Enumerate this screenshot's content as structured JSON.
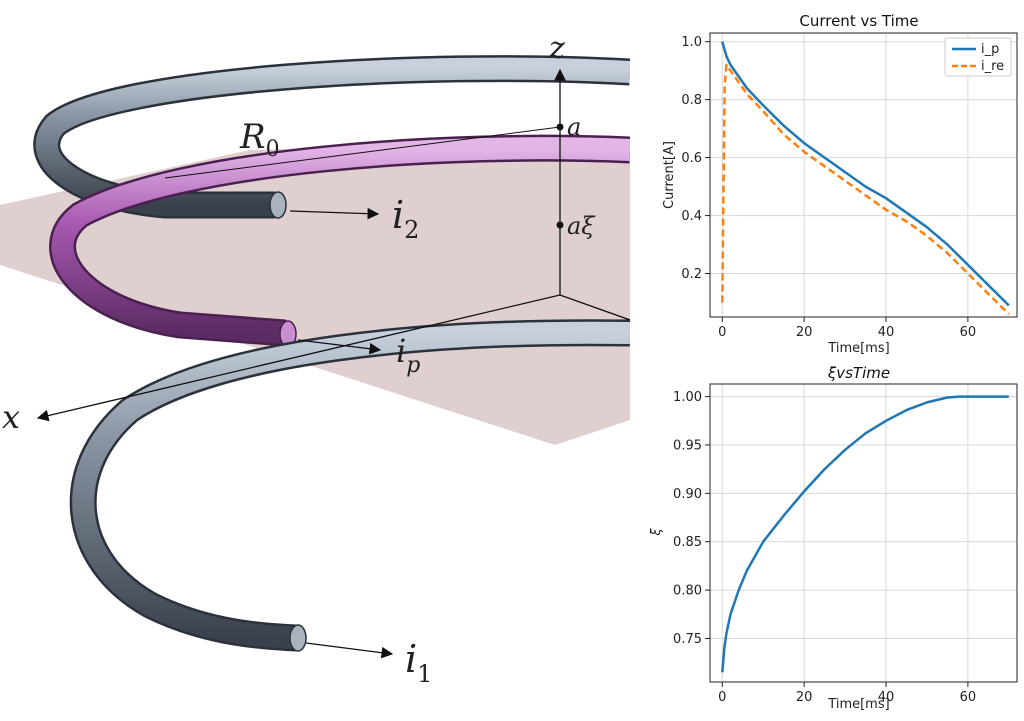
{
  "diagram": {
    "labels": {
      "z": "z",
      "x": "x",
      "R0": "R",
      "R0_sub": "0",
      "a": "a",
      "a_xi": "aξ",
      "i2": "i",
      "i2_sub": "2",
      "i1": "i",
      "i1_sub": "1",
      "ip": "i",
      "ip_sub": "p"
    },
    "colors": {
      "coil_outer": "#66707e",
      "coil_inner": "#9a5aa3",
      "plane": "#d4bfbf"
    }
  },
  "chart_data": [
    {
      "type": "line",
      "title": "Current vs Time",
      "xlabel": "Time[ms]",
      "ylabel": "Current[A]",
      "xlim": [
        -3,
        72
      ],
      "ylim": [
        0.05,
        1.03
      ],
      "xticks": [
        0,
        20,
        40,
        60
      ],
      "yticks": [
        0.2,
        0.4,
        0.6,
        0.8,
        1.0
      ],
      "ytick_labels": [
        "0.2",
        "0.4",
        "0.6",
        "0.8",
        "1.0"
      ],
      "grid": true,
      "legend": "top-right",
      "series": [
        {
          "name": "i_p",
          "color": "#1f77b4",
          "dash": "solid",
          "x": [
            0,
            1,
            2,
            4,
            6,
            10,
            15,
            20,
            25,
            30,
            35,
            40,
            45,
            50,
            55,
            60,
            65,
            70
          ],
          "y": [
            1.0,
            0.95,
            0.92,
            0.88,
            0.84,
            0.78,
            0.71,
            0.65,
            0.6,
            0.55,
            0.5,
            0.46,
            0.41,
            0.36,
            0.3,
            0.23,
            0.16,
            0.09
          ]
        },
        {
          "name": "i_re",
          "color": "#ff7f0e",
          "dash": "dashed",
          "x": [
            0,
            0.3,
            0.6,
            1,
            2,
            4,
            6,
            10,
            15,
            20,
            25,
            30,
            35,
            40,
            45,
            50,
            55,
            60,
            65,
            70
          ],
          "y": [
            0.1,
            0.5,
            0.85,
            0.92,
            0.9,
            0.86,
            0.82,
            0.76,
            0.68,
            0.62,
            0.57,
            0.52,
            0.47,
            0.42,
            0.38,
            0.33,
            0.27,
            0.2,
            0.13,
            0.06
          ]
        }
      ]
    },
    {
      "type": "line",
      "title": "ξvsTime",
      "xlabel": "Time[ms]",
      "ylabel": "ξ",
      "xlim": [
        -3,
        72
      ],
      "ylim": [
        0.705,
        1.013
      ],
      "xticks": [
        0,
        20,
        40,
        60
      ],
      "yticks": [
        0.75,
        0.8,
        0.85,
        0.9,
        0.95,
        1.0
      ],
      "ytick_labels": [
        "0.75",
        "0.80",
        "0.85",
        "0.90",
        "0.95",
        "1.00"
      ],
      "grid": true,
      "series": [
        {
          "color": "#1f77b4",
          "dash": "solid",
          "x": [
            0,
            0.5,
            1,
            2,
            4,
            6,
            10,
            15,
            20,
            25,
            30,
            35,
            40,
            45,
            50,
            55,
            58,
            60,
            65,
            70
          ],
          "y": [
            0.715,
            0.74,
            0.755,
            0.775,
            0.8,
            0.82,
            0.85,
            0.877,
            0.902,
            0.925,
            0.945,
            0.962,
            0.975,
            0.986,
            0.994,
            0.999,
            1.0,
            1.0,
            1.0,
            1.0
          ]
        }
      ]
    }
  ]
}
